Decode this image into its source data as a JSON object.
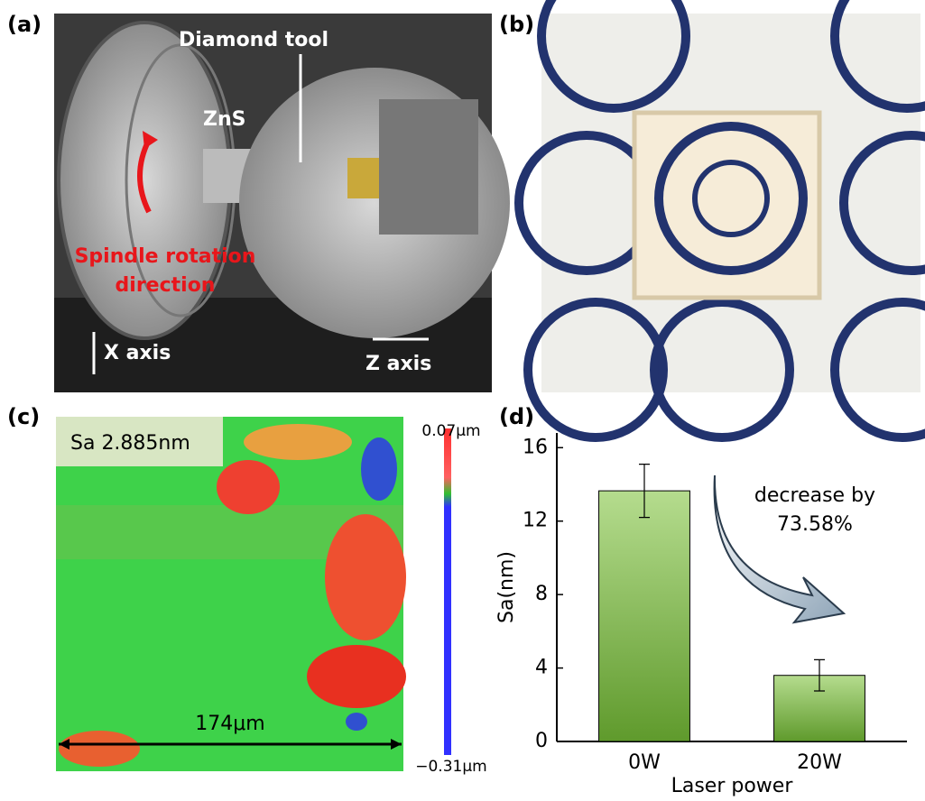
{
  "panels": [
    {
      "label": "(a)",
      "annotations": [
        "Diamond tool",
        "ZnS",
        "Spindle rotation",
        "direction",
        "X axis",
        "Z axis"
      ]
    },
    {
      "label": "(b)"
    },
    {
      "label": "(c)",
      "annotations": [
        "Sa 2.885nm",
        "174μm"
      ],
      "colorbar": {
        "max_label": "0.07μm",
        "min_label": "−0.31μm"
      }
    },
    {
      "label": "(d)"
    }
  ],
  "chart_data": {
    "type": "bar",
    "categories": [
      "0W",
      "20W"
    ],
    "values": [
      13.65,
      3.6
    ],
    "errors": [
      1.45,
      0.85
    ],
    "color": "#8cc05a",
    "ylim": [
      0,
      16.8
    ],
    "yticks": [
      0,
      4,
      8,
      12,
      16
    ],
    "xlabel": "Laser power",
    "ylabel": "Sa(nm)",
    "annotations": [
      "decrease by",
      "73.58%"
    ]
  }
}
